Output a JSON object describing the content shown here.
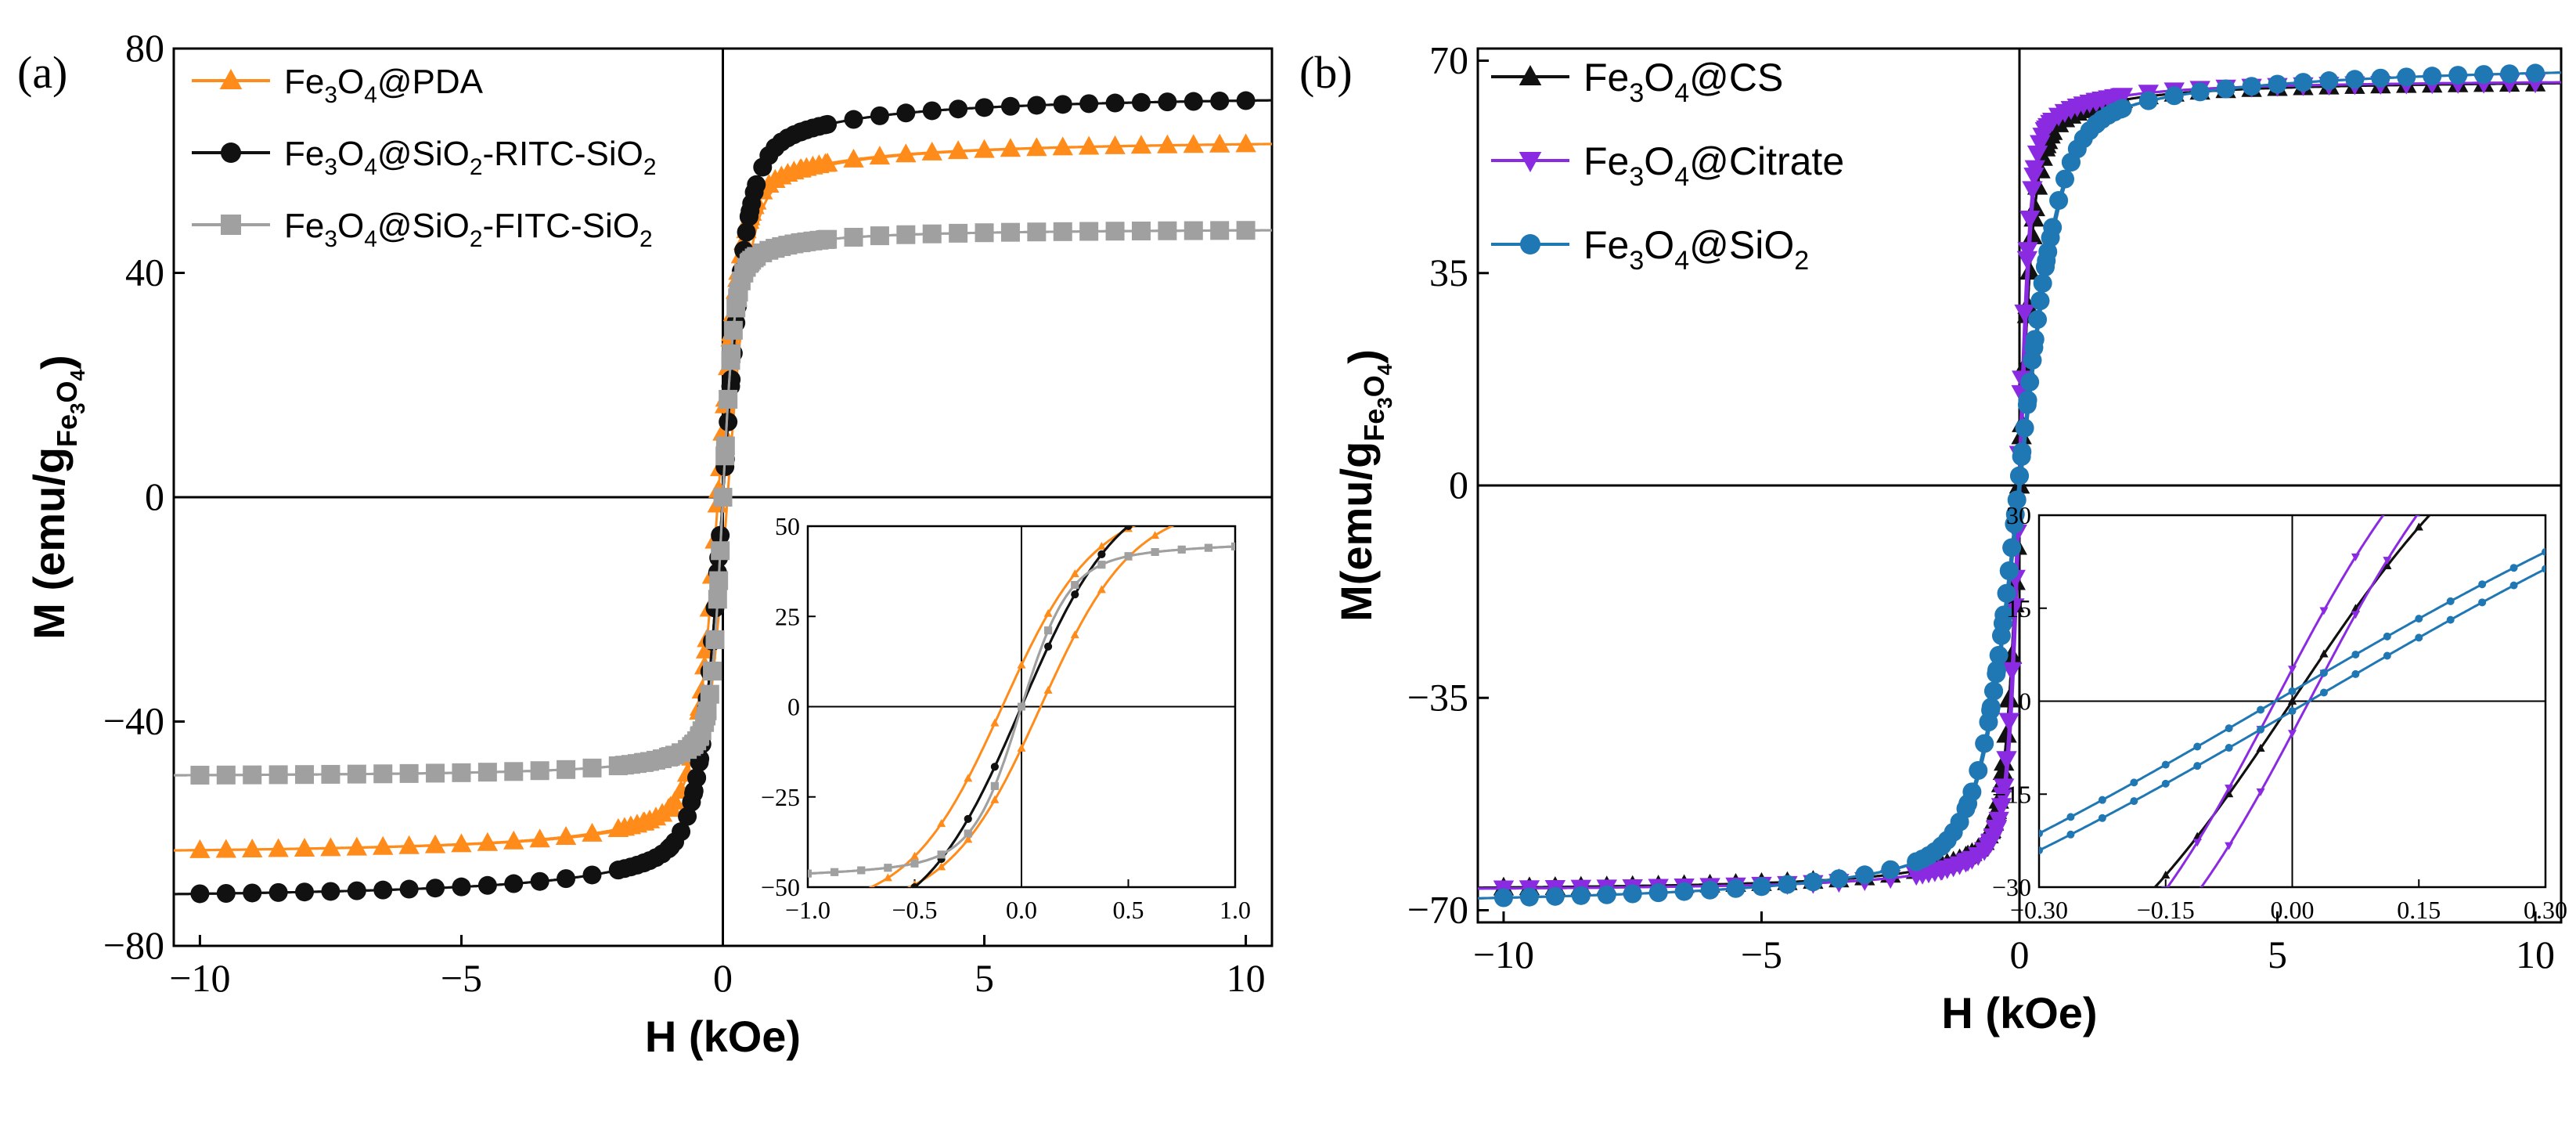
{
  "colors": {
    "orange": "#ff8c1a",
    "black": "#111111",
    "gray": "#a0a0a0",
    "purple": "#8a2be2",
    "blue": "#1f77b4"
  },
  "chart_data": [
    {
      "panel_label": "(a)",
      "type": "line",
      "xlabel": "H (kOe)",
      "ylabel_prefix": "M (emu/g",
      "ylabel_sub": "Fe",
      "ylabel_subsub": "3",
      "ylabel_sub2": "O",
      "ylabel_subsub2": "4",
      "ylabel_suffix": ")",
      "xlim": [
        -10.5,
        10.5
      ],
      "ylim": [
        -80,
        80
      ],
      "xticks": [
        -10,
        -5,
        0,
        5,
        10
      ],
      "xtick_labels": [
        "−10",
        "−5",
        "0",
        "5",
        "10"
      ],
      "yticks": [
        -80,
        -40,
        0,
        40,
        80
      ],
      "ytick_labels": [
        "−80",
        "−40",
        "0",
        "40",
        "80"
      ],
      "legend": [
        {
          "name": "Fe3O4@PDA",
          "parts": [
            "Fe",
            "3",
            "O",
            "4",
            "@PDA",
            "",
            ""
          ],
          "color": "orange",
          "marker": "triangle"
        },
        {
          "name": "Fe3O4@SiO2-RITC-SiO2",
          "parts": [
            "Fe",
            "3",
            "O",
            "4",
            "@SiO",
            "2",
            "-RITC-SiO",
            "2"
          ],
          "color": "black",
          "marker": "circle"
        },
        {
          "name": "Fe3O4@SiO2-FITC-SiO2",
          "parts": [
            "Fe",
            "3",
            "O",
            "4",
            "@SiO",
            "2",
            "-FITC-SiO",
            "2"
          ],
          "color": "gray",
          "marker": "square"
        }
      ],
      "series": [
        {
          "name": "Fe3O4@PDA",
          "color": "orange",
          "marker": "triangle",
          "Ms": 64,
          "Hk": 0.42,
          "Hc": 0.09
        },
        {
          "name": "Fe3O4@SiO2-RITC-SiO2",
          "color": "black",
          "marker": "circle",
          "Ms": 72,
          "Hk": 0.45,
          "Hc": 0.0
        },
        {
          "name": "Fe3O4@SiO2-FITC-SiO2",
          "color": "gray",
          "marker": "square",
          "Ms": 48,
          "Hk": 0.22,
          "Hc": 0.0,
          "neg_Ms": 50
        }
      ],
      "inset": {
        "xlim": [
          -1.0,
          1.0
        ],
        "ylim": [
          -50,
          50
        ],
        "xticks": [
          -1.0,
          -0.5,
          0.0,
          0.5,
          1.0
        ],
        "xtick_labels": [
          "−1.0",
          "−0.5",
          "0.0",
          "0.5",
          "1.0"
        ],
        "yticks": [
          -50,
          -25,
          0,
          25,
          50
        ],
        "ytick_labels": [
          "−50",
          "−25",
          "0",
          "25",
          "50"
        ]
      }
    },
    {
      "panel_label": "(b)",
      "type": "line",
      "xlabel": "H (kOe)",
      "ylabel_prefix": "M(emu/g",
      "ylabel_sub": "Fe",
      "ylabel_subsub": "3",
      "ylabel_sub2": "O",
      "ylabel_subsub2": "4",
      "ylabel_suffix": ")",
      "xlim": [
        -10.5,
        10.5
      ],
      "ylim": [
        -72,
        72
      ],
      "xticks": [
        -10,
        -5,
        0,
        5,
        10
      ],
      "xtick_labels": [
        "−10",
        "−5",
        "0",
        "5",
        "10"
      ],
      "yticks": [
        -70,
        -35,
        0,
        35,
        70
      ],
      "ytick_labels": [
        "−70",
        "−35",
        "0",
        "35",
        "70"
      ],
      "legend": [
        {
          "name": "Fe3O4@CS",
          "parts": [
            "Fe",
            "3",
            "O",
            "4",
            "@CS",
            "",
            ""
          ],
          "color": "black",
          "marker": "triangle"
        },
        {
          "name": "Fe3O4@Citrate",
          "parts": [
            "Fe",
            "3",
            "O",
            "4",
            "@Citrate",
            "",
            ""
          ],
          "color": "purple",
          "marker": "triangle-down"
        },
        {
          "name": "Fe3O4@SiO2",
          "parts": [
            "Fe",
            "3",
            "O",
            "4",
            "@SiO",
            "2",
            ""
          ],
          "color": "blue",
          "marker": "circle"
        }
      ],
      "series": [
        {
          "name": "Fe3O4@CS",
          "color": "black",
          "marker": "triangle",
          "Ms": 67,
          "Hk": 0.28,
          "Hc": 0.0
        },
        {
          "name": "Fe3O4@Citrate",
          "color": "purple",
          "marker": "triangle-down",
          "Ms": 67,
          "Hk": 0.22,
          "Hc": 0.02
        },
        {
          "name": "Fe3O4@SiO2",
          "color": "blue",
          "marker": "circle",
          "Ms": 70,
          "Hk": 0.75,
          "Hc": 0.02
        }
      ],
      "inset": {
        "xlim": [
          -0.3,
          0.3
        ],
        "ylim": [
          -30,
          30
        ],
        "xticks": [
          -0.3,
          -0.15,
          0.0,
          0.15,
          0.3
        ],
        "xtick_labels": [
          "−0.30",
          "−0.15",
          "0.00",
          "0.15",
          "0.30"
        ],
        "yticks": [
          -30,
          -15,
          0,
          15,
          30
        ],
        "ytick_labels": [
          "−30",
          "−15",
          "0",
          "15",
          "30"
        ]
      }
    }
  ]
}
